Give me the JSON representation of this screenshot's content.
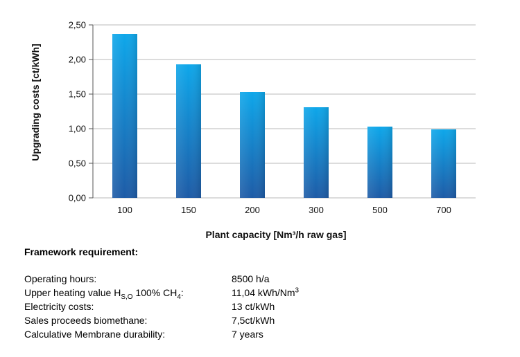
{
  "chart_data": {
    "type": "bar",
    "categories": [
      "100",
      "150",
      "200",
      "300",
      "500",
      "700"
    ],
    "values": [
      2.37,
      1.93,
      1.53,
      1.31,
      1.03,
      0.99
    ],
    "title": "",
    "xlabel": "Plant capacity [Nm³/h raw gas]",
    "ylabel": "Upgrading costs [ct/kWh]",
    "ylim": [
      0,
      2.5
    ],
    "yticks": [
      0,
      0.5,
      1.0,
      1.5,
      2.0,
      2.5
    ],
    "ytick_labels": [
      "0,00",
      "0,50",
      "1,00",
      "1,50",
      "2,00",
      "2,50"
    ],
    "grid": "horizontal",
    "bar_color_top": "#0ea7ea",
    "bar_color_bottom": "#1e5ba6"
  },
  "framework": {
    "title": "Framework requirement:",
    "rows": [
      {
        "label": "Operating hours:",
        "value": "8500 h/a"
      },
      {
        "label_pre": "Upper heating value H",
        "label_sub": "S,O",
        "label_mid": " 100% CH",
        "label_sub2": "4",
        "label_post": ":",
        "value_pre": "11,04 kWh/Nm",
        "value_sup": "3"
      },
      {
        "label": "Electricity costs:",
        "value": "13 ct/kWh"
      },
      {
        "label": "Sales proceeds biomethane:",
        "value": "7,5ct/kWh"
      },
      {
        "label": "Calculative Membrane durability:",
        "value": "7 years"
      }
    ]
  }
}
